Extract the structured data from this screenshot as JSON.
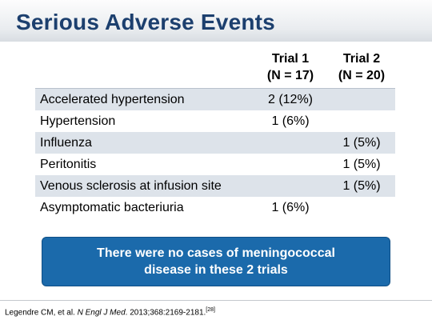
{
  "title": "Serious Adverse Events",
  "table": {
    "headers": [
      {
        "line1": "",
        "line2": ""
      },
      {
        "line1": "Trial 1",
        "line2": "(N = 17)"
      },
      {
        "line1": "Trial 2",
        "line2": "(N = 20)"
      }
    ],
    "rows": [
      {
        "event": "Accelerated hypertension",
        "trial1": "2 (12%)",
        "trial2": ""
      },
      {
        "event": "Hypertension",
        "trial1": "1 (6%)",
        "trial2": ""
      },
      {
        "event": "Influenza",
        "trial1": "",
        "trial2": "1 (5%)"
      },
      {
        "event": "Peritonitis",
        "trial1": "",
        "trial2": "1 (5%)"
      },
      {
        "event": "Venous sclerosis at infusion site",
        "trial1": "",
        "trial2": "1 (5%)"
      },
      {
        "event": "Asymptomatic bacteriuria",
        "trial1": "1 (6%)",
        "trial2": ""
      }
    ]
  },
  "note": "There were no cases of meningococcal disease in these 2 trials",
  "citation": {
    "authors": "Legendre CM, et al. ",
    "journal": "N Engl J Med",
    "details": ". 2013;368:2169-2181.",
    "ref": "[28]"
  },
  "colors": {
    "title": "#1c3f6e",
    "row_shade": "#dde3ea",
    "note_bg": "#1b6aab"
  }
}
